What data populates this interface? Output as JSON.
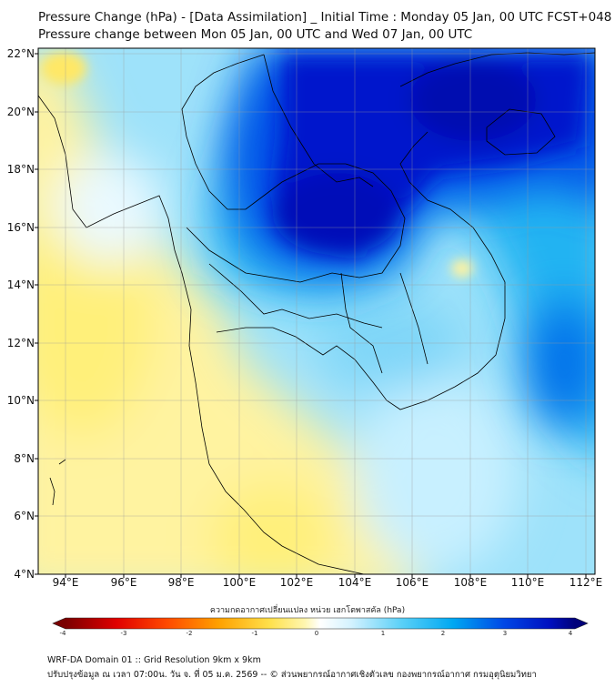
{
  "title_line1": "Pressure Change (hPa) - [Data Assimilation] _ Initial Time : Monday 05 Jan, 00 UTC FCST+048",
  "title_line2": "Pressure change between Mon 05 Jan, 00 UTC and Wed 07 Jan, 00 UTC",
  "lat_labels": [
    "22°N",
    "20°N",
    "18°N",
    "16°N",
    "14°N",
    "12°N",
    "10°N",
    "8°N",
    "6°N",
    "4°N"
  ],
  "lon_labels": [
    "94°E",
    "96°E",
    "98°E",
    "100°E",
    "102°E",
    "104°E",
    "106°E",
    "108°E",
    "110°E",
    "112°E"
  ],
  "colorbar": {
    "title": "ความกดอากาศเปลี่ยนแปลง หน่วย เฮกโตพาสคัล (hPa)",
    "tick_labels": [
      "-4",
      "-3",
      "-2",
      "-1",
      "0",
      "1",
      "2",
      "3",
      "4"
    ],
    "range": [
      -4,
      4
    ],
    "colors": [
      "#7a0000",
      "#e00000",
      "#ff7b00",
      "#ffd21a",
      "#fff4a0",
      "#ffffff",
      "#d9f4ff",
      "#40c4f5",
      "#009cf0",
      "#0033e0",
      "#00007a"
    ]
  },
  "footer_line1": "WRF-DA Domain 01 :: Grid Resolution 9km x 9km",
  "footer_line2": "ปรับปรุงข้อมูล ณ เวลา 07:00น. วัน จ. ที่ 05 ม.ค. 2569 -- © ส่วนพยากรณ์อากาศเชิงตัวเลข กองพยากรณ์อากาศ กรมอุตุนิยมวิทยา",
  "colors": {
    "low": "#fff07a",
    "zero": "#ffffff",
    "mid": "#40c4f5",
    "high": "#0012c8"
  }
}
